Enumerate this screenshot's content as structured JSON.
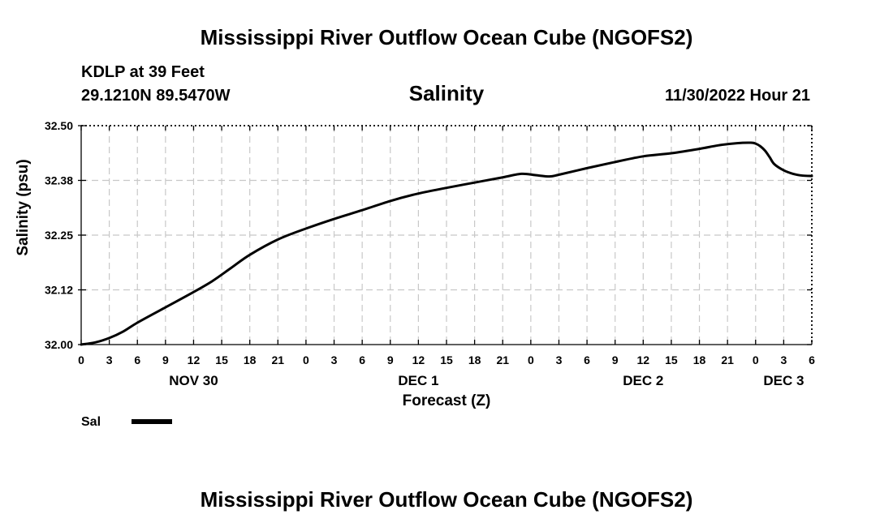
{
  "header": {
    "title": "Mississippi River Outflow Ocean Cube (NGOFS2)",
    "station": "KDLP at 39 Feet",
    "coords": "29.1210N  89.5470W",
    "variable": "Salinity",
    "timestamp": "11/30/2022 Hour 21"
  },
  "footer": {
    "title": "Mississippi River Outflow Ocean Cube (NGOFS2)"
  },
  "chart_data": {
    "type": "line",
    "title": "Salinity",
    "xlabel": "Forecast (Z)",
    "ylabel": "Salinity (psu)",
    "x_unit": "hours from Nov 30 00Z",
    "xlim": [
      0,
      78
    ],
    "ylim": [
      32.0,
      32.5
    ],
    "x_ticks": [
      0,
      3,
      6,
      9,
      12,
      15,
      18,
      21,
      24,
      27,
      30,
      33,
      36,
      39,
      42,
      45,
      48,
      51,
      54,
      57,
      60,
      63,
      66,
      69,
      72,
      75,
      78
    ],
    "x_tick_labels": [
      "0",
      "3",
      "6",
      "9",
      "12",
      "15",
      "18",
      "21",
      "0",
      "3",
      "6",
      "9",
      "12",
      "15",
      "18",
      "21",
      "0",
      "3",
      "6",
      "9",
      "12",
      "15",
      "18",
      "21",
      "0",
      "3",
      "6"
    ],
    "y_ticks": [
      32.0,
      32.125,
      32.25,
      32.375,
      32.5
    ],
    "y_tick_labels": [
      "32.00",
      "32.12",
      "32.25",
      "32.38",
      "32.50"
    ],
    "day_labels": [
      {
        "x": 12,
        "label": "NOV 30"
      },
      {
        "x": 36,
        "label": "DEC 1"
      },
      {
        "x": 60,
        "label": "DEC 2"
      },
      {
        "x": 75,
        "label": "DEC 3"
      }
    ],
    "grid": true,
    "legend": {
      "position": "bottom-left",
      "entries": [
        "Sal"
      ]
    },
    "series": [
      {
        "name": "Sal",
        "color": "#000000",
        "x": [
          0,
          1.5,
          3,
          4.5,
          6,
          9,
          12,
          14,
          16,
          18,
          21,
          24,
          27,
          30,
          33,
          36,
          39,
          42,
          45,
          47,
          48.5,
          50,
          51,
          54,
          57,
          60,
          63,
          66,
          68,
          70,
          71.5,
          72,
          72.5,
          73,
          73.5,
          74,
          75,
          76,
          77,
          78
        ],
        "values": [
          32.0,
          32.005,
          32.015,
          32.03,
          32.05,
          32.085,
          32.12,
          32.145,
          32.175,
          32.205,
          32.24,
          32.265,
          32.287,
          32.307,
          32.328,
          32.345,
          32.358,
          32.37,
          32.382,
          32.39,
          32.387,
          32.384,
          32.388,
          32.403,
          32.417,
          32.43,
          32.437,
          32.447,
          32.455,
          32.46,
          32.461,
          32.459,
          32.453,
          32.443,
          32.428,
          32.412,
          32.398,
          32.39,
          32.386,
          32.385
        ]
      }
    ]
  }
}
